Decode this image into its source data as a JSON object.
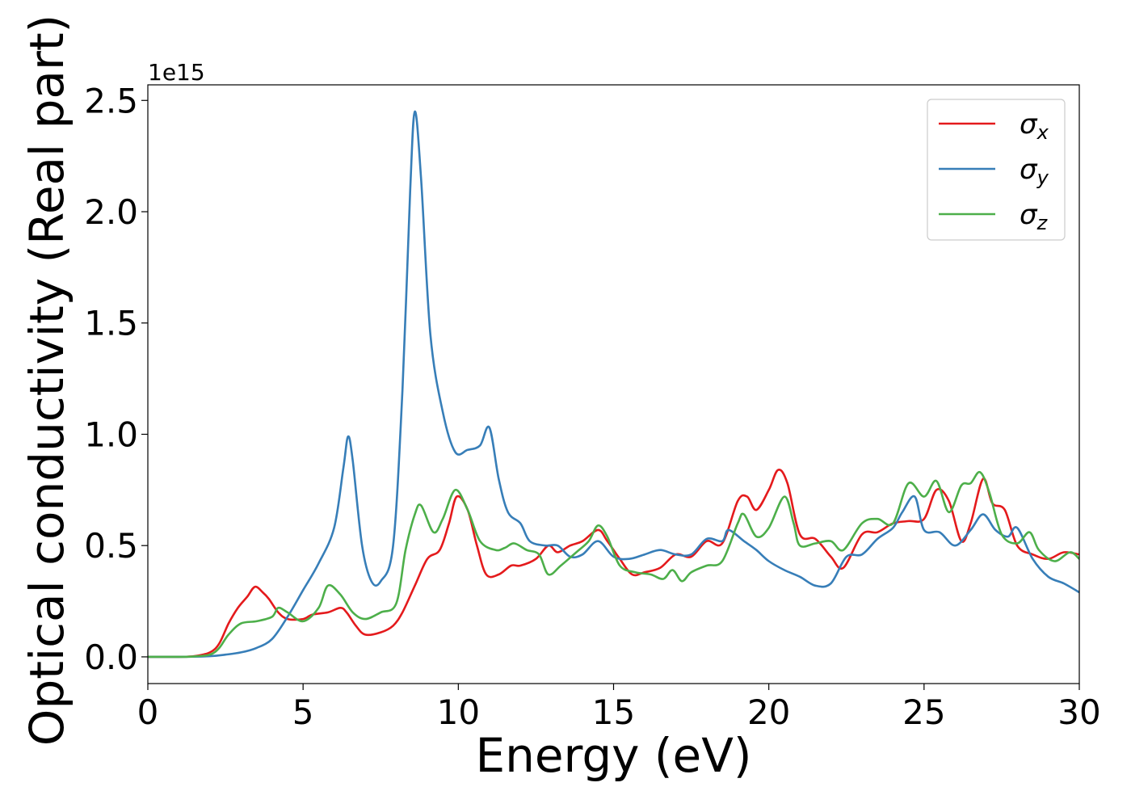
{
  "chart_data": {
    "type": "line",
    "title": "",
    "xlabel": "Energy (eV)",
    "ylabel": "Optical conductivity (Real part)",
    "y_offset_label": "1e15",
    "xlim": [
      0,
      30
    ],
    "ylim": [
      -0.12,
      2.57
    ],
    "x_ticks": [
      0,
      5,
      10,
      15,
      20,
      25,
      30
    ],
    "y_ticks": [
      0.0,
      0.5,
      1.0,
      1.5,
      2.0,
      2.5
    ],
    "x_tick_labels": [
      "0",
      "5",
      "10",
      "15",
      "20",
      "25",
      "30"
    ],
    "y_tick_labels": [
      "0.0",
      "0.5",
      "1.0",
      "1.5",
      "2.0",
      "2.5"
    ],
    "grid": false,
    "legend_position": "top-right",
    "series": [
      {
        "name": "σx",
        "legend_symbol": "σ",
        "legend_sub": "x",
        "color": "#e41a1c",
        "points": [
          [
            0,
            0
          ],
          [
            1,
            0.0
          ],
          [
            1.5,
            0.003
          ],
          [
            2,
            0.02
          ],
          [
            2.3,
            0.06
          ],
          [
            2.6,
            0.15
          ],
          [
            2.9,
            0.22
          ],
          [
            3.2,
            0.27
          ],
          [
            3.45,
            0.315
          ],
          [
            3.7,
            0.29
          ],
          [
            3.9,
            0.26
          ],
          [
            4.2,
            0.2
          ],
          [
            4.5,
            0.17
          ],
          [
            5,
            0.17
          ],
          [
            5.3,
            0.19
          ],
          [
            5.8,
            0.2
          ],
          [
            6.2,
            0.22
          ],
          [
            6.4,
            0.2
          ],
          [
            6.7,
            0.14
          ],
          [
            7,
            0.1
          ],
          [
            7.5,
            0.11
          ],
          [
            7.9,
            0.14
          ],
          [
            8.2,
            0.2
          ],
          [
            8.6,
            0.32
          ],
          [
            9,
            0.44
          ],
          [
            9.4,
            0.48
          ],
          [
            9.7,
            0.6
          ],
          [
            9.95,
            0.72
          ],
          [
            10.3,
            0.66
          ],
          [
            10.6,
            0.5
          ],
          [
            10.9,
            0.37
          ],
          [
            11.3,
            0.37
          ],
          [
            11.7,
            0.41
          ],
          [
            12,
            0.41
          ],
          [
            12.5,
            0.44
          ],
          [
            12.9,
            0.5
          ],
          [
            13.2,
            0.47
          ],
          [
            13.6,
            0.5
          ],
          [
            14,
            0.52
          ],
          [
            14.5,
            0.57
          ],
          [
            14.8,
            0.52
          ],
          [
            15.2,
            0.44
          ],
          [
            15.6,
            0.37
          ],
          [
            16,
            0.38
          ],
          [
            16.5,
            0.4
          ],
          [
            17,
            0.46
          ],
          [
            17.5,
            0.45
          ],
          [
            18,
            0.52
          ],
          [
            18.5,
            0.51
          ],
          [
            19,
            0.7
          ],
          [
            19.3,
            0.72
          ],
          [
            19.6,
            0.66
          ],
          [
            20,
            0.75
          ],
          [
            20.3,
            0.84
          ],
          [
            20.6,
            0.78
          ],
          [
            21,
            0.55
          ],
          [
            21.5,
            0.53
          ],
          [
            22,
            0.45
          ],
          [
            22.4,
            0.4
          ],
          [
            23,
            0.55
          ],
          [
            23.5,
            0.56
          ],
          [
            24,
            0.6
          ],
          [
            24.5,
            0.61
          ],
          [
            25,
            0.62
          ],
          [
            25.4,
            0.75
          ],
          [
            25.8,
            0.7
          ],
          [
            26.2,
            0.52
          ],
          [
            26.5,
            0.6
          ],
          [
            26.9,
            0.8
          ],
          [
            27.2,
            0.69
          ],
          [
            27.6,
            0.66
          ],
          [
            28,
            0.5
          ],
          [
            28.5,
            0.46
          ],
          [
            29,
            0.44
          ],
          [
            29.5,
            0.47
          ],
          [
            30,
            0.46
          ]
        ]
      },
      {
        "name": "σy",
        "legend_symbol": "σ",
        "legend_sub": "y",
        "color": "#377eb8",
        "points": [
          [
            0,
            0
          ],
          [
            1,
            0.0
          ],
          [
            2,
            0.003
          ],
          [
            2.5,
            0.01
          ],
          [
            3,
            0.02
          ],
          [
            3.5,
            0.04
          ],
          [
            4,
            0.08
          ],
          [
            4.5,
            0.18
          ],
          [
            5,
            0.3
          ],
          [
            5.5,
            0.42
          ],
          [
            6,
            0.58
          ],
          [
            6.3,
            0.85
          ],
          [
            6.45,
            0.99
          ],
          [
            6.6,
            0.88
          ],
          [
            6.9,
            0.5
          ],
          [
            7.2,
            0.34
          ],
          [
            7.5,
            0.34
          ],
          [
            7.9,
            0.5
          ],
          [
            8.2,
            1.2
          ],
          [
            8.45,
            2.1
          ],
          [
            8.6,
            2.45
          ],
          [
            8.8,
            2.15
          ],
          [
            9.1,
            1.45
          ],
          [
            9.5,
            1.1
          ],
          [
            9.9,
            0.92
          ],
          [
            10.3,
            0.93
          ],
          [
            10.7,
            0.95
          ],
          [
            11,
            1.03
          ],
          [
            11.3,
            0.8
          ],
          [
            11.6,
            0.65
          ],
          [
            12,
            0.6
          ],
          [
            12.3,
            0.52
          ],
          [
            12.8,
            0.5
          ],
          [
            13.2,
            0.5
          ],
          [
            13.6,
            0.45
          ],
          [
            14,
            0.46
          ],
          [
            14.5,
            0.52
          ],
          [
            15,
            0.45
          ],
          [
            15.5,
            0.44
          ],
          [
            16,
            0.46
          ],
          [
            16.5,
            0.48
          ],
          [
            17,
            0.46
          ],
          [
            17.5,
            0.46
          ],
          [
            18,
            0.53
          ],
          [
            18.5,
            0.52
          ],
          [
            18.7,
            0.57
          ],
          [
            19.2,
            0.52
          ],
          [
            19.6,
            0.48
          ],
          [
            20,
            0.43
          ],
          [
            20.5,
            0.39
          ],
          [
            21,
            0.36
          ],
          [
            21.5,
            0.32
          ],
          [
            22,
            0.33
          ],
          [
            22.5,
            0.45
          ],
          [
            23,
            0.46
          ],
          [
            23.5,
            0.53
          ],
          [
            24,
            0.58
          ],
          [
            24.3,
            0.65
          ],
          [
            24.7,
            0.72
          ],
          [
            25,
            0.57
          ],
          [
            25.5,
            0.56
          ],
          [
            26,
            0.5
          ],
          [
            26.5,
            0.57
          ],
          [
            26.9,
            0.64
          ],
          [
            27.3,
            0.57
          ],
          [
            27.7,
            0.54
          ],
          [
            28,
            0.58
          ],
          [
            28.5,
            0.44
          ],
          [
            29,
            0.36
          ],
          [
            29.5,
            0.33
          ],
          [
            30,
            0.29
          ]
        ]
      },
      {
        "name": "σz",
        "legend_symbol": "σ",
        "legend_sub": "z",
        "color": "#4daf4a",
        "points": [
          [
            0,
            0
          ],
          [
            1,
            0.0
          ],
          [
            1.5,
            0.002
          ],
          [
            2,
            0.01
          ],
          [
            2.3,
            0.04
          ],
          [
            2.6,
            0.1
          ],
          [
            3,
            0.15
          ],
          [
            3.5,
            0.16
          ],
          [
            4,
            0.18
          ],
          [
            4.2,
            0.22
          ],
          [
            4.5,
            0.2
          ],
          [
            5,
            0.16
          ],
          [
            5.5,
            0.22
          ],
          [
            5.8,
            0.32
          ],
          [
            6.2,
            0.28
          ],
          [
            6.6,
            0.2
          ],
          [
            7,
            0.17
          ],
          [
            7.5,
            0.2
          ],
          [
            8,
            0.24
          ],
          [
            8.3,
            0.48
          ],
          [
            8.6,
            0.64
          ],
          [
            8.8,
            0.68
          ],
          [
            9.2,
            0.56
          ],
          [
            9.5,
            0.62
          ],
          [
            9.9,
            0.75
          ],
          [
            10.3,
            0.66
          ],
          [
            10.7,
            0.52
          ],
          [
            11.2,
            0.48
          ],
          [
            11.5,
            0.49
          ],
          [
            11.8,
            0.51
          ],
          [
            12.2,
            0.48
          ],
          [
            12.6,
            0.46
          ],
          [
            12.9,
            0.37
          ],
          [
            13.3,
            0.41
          ],
          [
            13.8,
            0.47
          ],
          [
            14.2,
            0.52
          ],
          [
            14.5,
            0.59
          ],
          [
            14.8,
            0.54
          ],
          [
            15.2,
            0.41
          ],
          [
            15.7,
            0.38
          ],
          [
            16.2,
            0.37
          ],
          [
            16.6,
            0.35
          ],
          [
            16.9,
            0.39
          ],
          [
            17.2,
            0.34
          ],
          [
            17.5,
            0.38
          ],
          [
            18,
            0.41
          ],
          [
            18.5,
            0.43
          ],
          [
            19,
            0.6
          ],
          [
            19.2,
            0.64
          ],
          [
            19.6,
            0.54
          ],
          [
            20,
            0.58
          ],
          [
            20.5,
            0.72
          ],
          [
            20.8,
            0.6
          ],
          [
            21,
            0.5
          ],
          [
            21.5,
            0.51
          ],
          [
            22,
            0.52
          ],
          [
            22.4,
            0.48
          ],
          [
            23,
            0.6
          ],
          [
            23.5,
            0.62
          ],
          [
            24,
            0.6
          ],
          [
            24.5,
            0.78
          ],
          [
            25,
            0.72
          ],
          [
            25.4,
            0.79
          ],
          [
            25.8,
            0.65
          ],
          [
            26.2,
            0.77
          ],
          [
            26.5,
            0.78
          ],
          [
            26.8,
            0.83
          ],
          [
            27.1,
            0.74
          ],
          [
            27.5,
            0.55
          ],
          [
            28,
            0.51
          ],
          [
            28.4,
            0.56
          ],
          [
            28.7,
            0.48
          ],
          [
            29.2,
            0.43
          ],
          [
            29.7,
            0.47
          ],
          [
            30,
            0.44
          ]
        ]
      }
    ]
  }
}
